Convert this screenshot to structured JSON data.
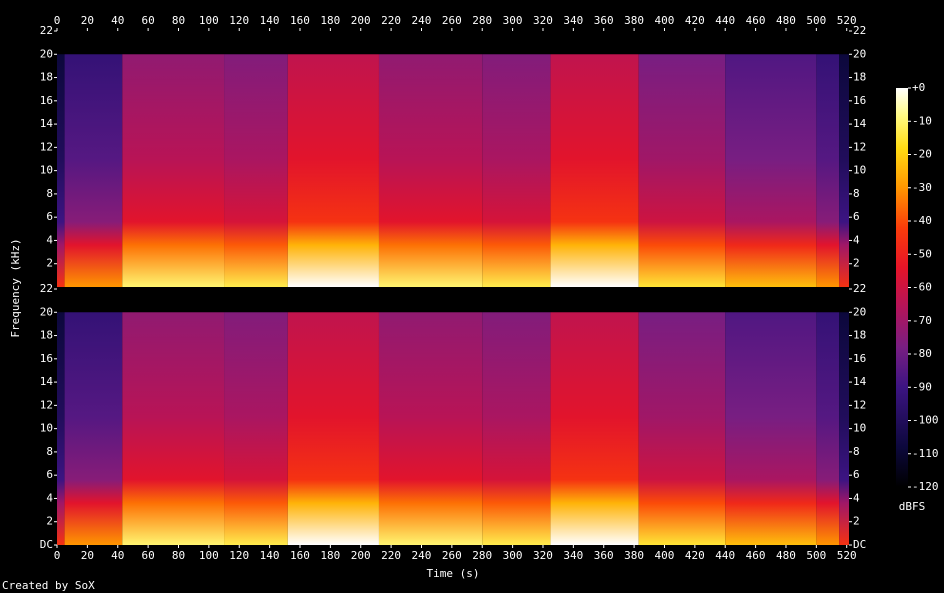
{
  "chart_data": {
    "type": "spectrogram",
    "xlabel": "Time (s)",
    "ylabel": "Frequency (kHz)",
    "xlim": [
      0,
      521.5
    ],
    "xticks": [
      0,
      20,
      40,
      60,
      80,
      100,
      120,
      140,
      160,
      180,
      200,
      220,
      240,
      260,
      280,
      300,
      320,
      340,
      360,
      380,
      400,
      420,
      440,
      460,
      480,
      500,
      520
    ],
    "ylim": [
      0,
      22
    ],
    "channels": [
      {
        "yticks": [
          2,
          4,
          6,
          8,
          10,
          12,
          14,
          16,
          18,
          20,
          22
        ]
      },
      {
        "yticks": [
          {
            "value": 0,
            "label": "DC"
          },
          2,
          4,
          6,
          8,
          10,
          12,
          14,
          16,
          18,
          20,
          22
        ]
      }
    ],
    "upper_frequency": 20,
    "segments": [
      {
        "start": 0,
        "end": 5,
        "level": -100
      },
      {
        "start": 5,
        "end": 43,
        "level": -85
      },
      {
        "start": 43,
        "end": 110,
        "level": -65
      },
      {
        "start": 110,
        "end": 152,
        "level": -68
      },
      {
        "start": 152,
        "end": 212,
        "level": -55
      },
      {
        "start": 212,
        "end": 280,
        "level": -65
      },
      {
        "start": 280,
        "end": 325,
        "level": -68
      },
      {
        "start": 325,
        "end": 383,
        "level": -55
      },
      {
        "start": 383,
        "end": 440,
        "level": -70
      },
      {
        "start": 440,
        "end": 500,
        "level": -78
      },
      {
        "start": 500,
        "end": 515,
        "level": -85
      },
      {
        "start": 515,
        "end": 521.5,
        "level": -100
      }
    ],
    "colorbar": {
      "label": "dBFS",
      "lim": [
        -120,
        0
      ],
      "ticks": [
        {
          "value": 0,
          "label": "+0"
        },
        -10,
        -20,
        -30,
        -40,
        -50,
        -60,
        -70,
        -80,
        -90,
        -100,
        -110,
        -120
      ]
    }
  },
  "footer": "Created by SoX"
}
